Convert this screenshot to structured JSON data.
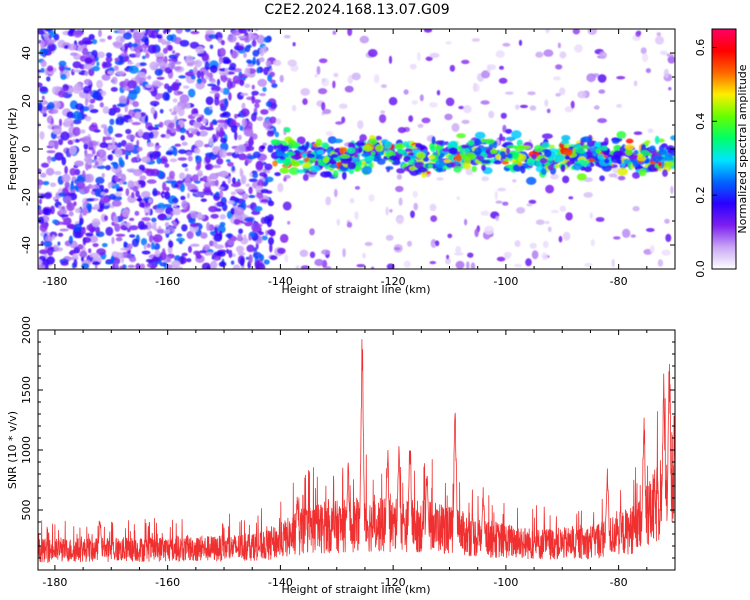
{
  "title": "C2E2.2024.168.13.07.G09",
  "chart_data": [
    {
      "type": "heatmap",
      "xlabel": "Height of straight line (km)",
      "ylabel": "Frequency (Hz)",
      "xlim": [
        -183,
        -70
      ],
      "ylim": [
        -50,
        50
      ],
      "xticks": [
        -180,
        -160,
        -140,
        -120,
        -100,
        -80
      ],
      "yticks": [
        -40,
        -20,
        0,
        20,
        40
      ],
      "colorbar": {
        "label": "Normalized spectral amplitude",
        "range": [
          0,
          0.65
        ],
        "ticks": [
          0.0,
          0.2,
          0.4,
          0.6
        ],
        "colors": [
          "#ffffff",
          "#c9a6f5",
          "#7d1ff0",
          "#2a00ff",
          "#0066ff",
          "#00e5ff",
          "#00ff66",
          "#66ff00",
          "#ffee00",
          "#ff6600",
          "#ff0000",
          "#ff0066"
        ]
      },
      "signal_band": {
        "x_range": [
          -141,
          -70
        ],
        "center_frequency_hz": -3,
        "half_width_hz": 6,
        "peak_amplitude": 0.6
      },
      "noise_regions": [
        {
          "x_range": [
            -183,
            -141
          ],
          "density": "high",
          "amplitude": [
            0.05,
            0.25
          ]
        },
        {
          "x_range": [
            -141,
            -70
          ],
          "density": "sparse",
          "amplitude": [
            0.02,
            0.15
          ]
        }
      ]
    },
    {
      "type": "line",
      "xlabel": "Height of straight line (km)",
      "ylabel": "SNR (10 * v/v)",
      "xlim": [
        -183,
        -70
      ],
      "ylim": [
        0,
        2000
      ],
      "xticks": [
        -180,
        -160,
        -140,
        -120,
        -100,
        -80
      ],
      "yticks": [
        500,
        1000,
        1500,
        2000
      ],
      "color": "#f03030",
      "baseline": [
        {
          "x": -183,
          "y": 180
        },
        {
          "x": -150,
          "y": 200
        },
        {
          "x": -142,
          "y": 230
        },
        {
          "x": -135,
          "y": 380
        },
        {
          "x": -125,
          "y": 420
        },
        {
          "x": -112,
          "y": 400
        },
        {
          "x": -105,
          "y": 300
        },
        {
          "x": -95,
          "y": 240
        },
        {
          "x": -86,
          "y": 250
        },
        {
          "x": -82,
          "y": 300
        },
        {
          "x": -76,
          "y": 400
        },
        {
          "x": -72,
          "y": 700
        },
        {
          "x": -70,
          "y": 900
        }
      ],
      "peaks": [
        {
          "x": -172,
          "y": 480
        },
        {
          "x": -137,
          "y": 650
        },
        {
          "x": -128,
          "y": 900
        },
        {
          "x": -125.5,
          "y": 2000
        },
        {
          "x": -121,
          "y": 1050
        },
        {
          "x": -119,
          "y": 1050
        },
        {
          "x": -117,
          "y": 1100
        },
        {
          "x": -114,
          "y": 900
        },
        {
          "x": -109,
          "y": 1350
        },
        {
          "x": -104,
          "y": 700
        },
        {
          "x": -82,
          "y": 900
        },
        {
          "x": -75.5,
          "y": 1300
        },
        {
          "x": -72,
          "y": 1650
        },
        {
          "x": -71,
          "y": 1820
        }
      ]
    }
  ]
}
